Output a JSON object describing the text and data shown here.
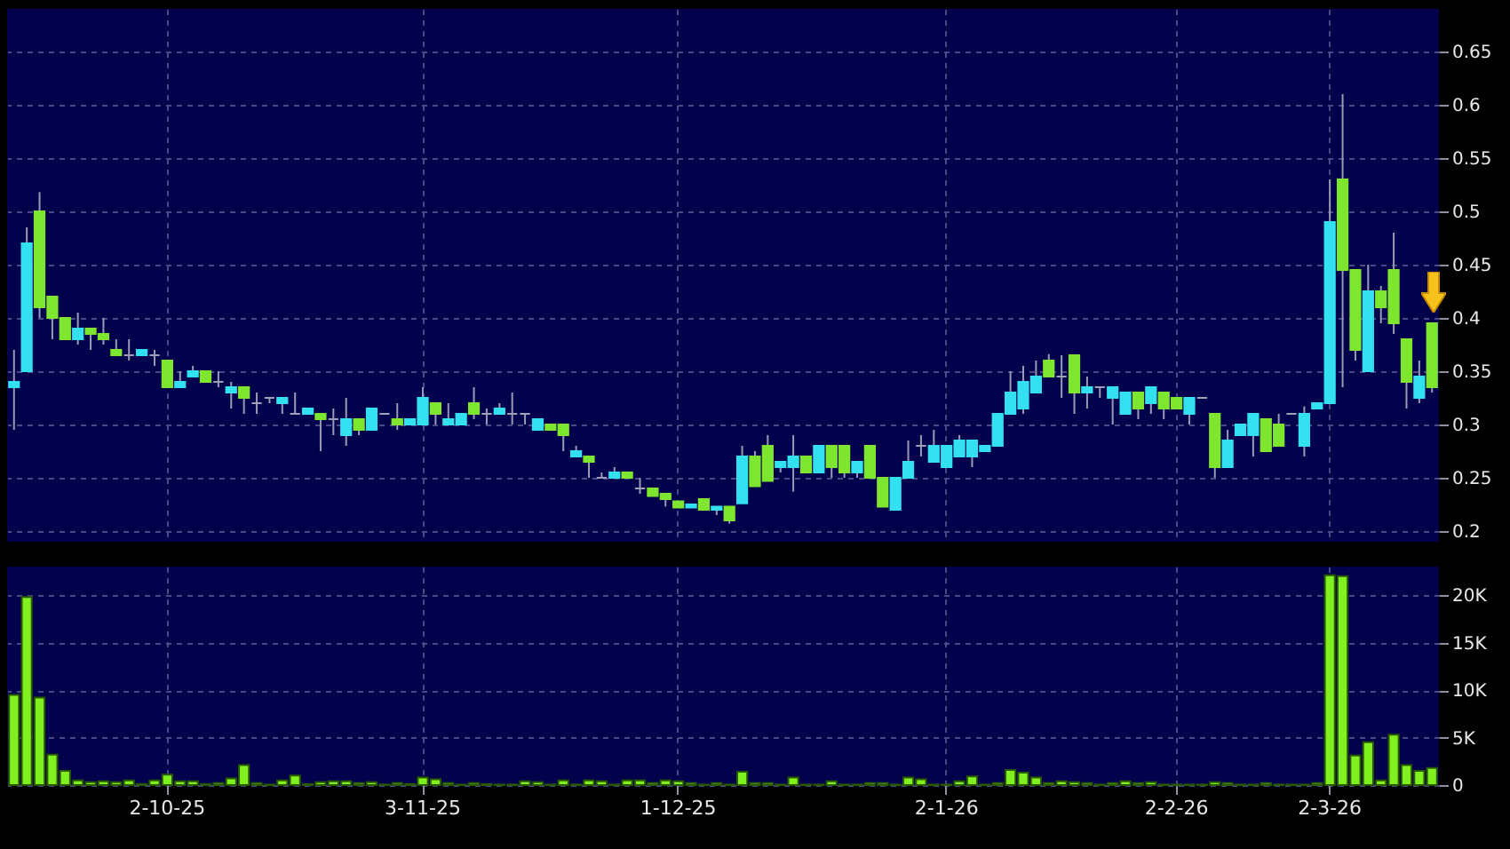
{
  "chart_data": [
    {
      "type": "candlestick",
      "tick_labels": "y",
      "grid": true,
      "ylim": [
        0.19,
        0.69
      ],
      "yticks": [
        0.2,
        0.25,
        0.3,
        0.35,
        0.4,
        0.45,
        0.5,
        0.55,
        0.6,
        0.65
      ],
      "ohlc": [
        [
          0.335,
          0.37,
          0.295,
          0.34
        ],
        [
          0.35,
          0.485,
          0.35,
          0.47
        ],
        [
          0.5,
          0.518,
          0.4,
          0.41
        ],
        [
          0.42,
          0.42,
          0.38,
          0.4
        ],
        [
          0.4,
          0.4,
          0.38,
          0.38
        ],
        [
          0.38,
          0.405,
          0.375,
          0.39
        ],
        [
          0.39,
          0.39,
          0.37,
          0.385
        ],
        [
          0.385,
          0.4,
          0.375,
          0.38
        ],
        [
          0.37,
          0.38,
          0.365,
          0.365
        ],
        [
          0.365,
          0.38,
          0.36,
          0.365
        ],
        [
          0.365,
          0.37,
          0.365,
          0.37
        ],
        [
          0.365,
          0.37,
          0.355,
          0.365
        ],
        [
          0.36,
          0.36,
          0.335,
          0.335
        ],
        [
          0.335,
          0.35,
          0.335,
          0.34
        ],
        [
          0.345,
          0.355,
          0.345,
          0.35
        ],
        [
          0.35,
          0.35,
          0.34,
          0.34
        ],
        [
          0.34,
          0.35,
          0.335,
          0.34
        ],
        [
          0.33,
          0.34,
          0.315,
          0.335
        ],
        [
          0.335,
          0.335,
          0.31,
          0.325
        ],
        [
          0.32,
          0.33,
          0.31,
          0.32
        ],
        [
          0.325,
          0.325,
          0.32,
          0.325
        ],
        [
          0.32,
          0.325,
          0.31,
          0.325
        ],
        [
          0.31,
          0.33,
          0.31,
          0.31
        ],
        [
          0.31,
          0.315,
          0.31,
          0.315
        ],
        [
          0.31,
          0.31,
          0.275,
          0.305
        ],
        [
          0.305,
          0.315,
          0.29,
          0.305
        ],
        [
          0.29,
          0.325,
          0.28,
          0.305
        ],
        [
          0.305,
          0.305,
          0.29,
          0.295
        ],
        [
          0.295,
          0.315,
          0.295,
          0.315
        ],
        [
          0.31,
          0.31,
          0.31,
          0.31
        ],
        [
          0.305,
          0.32,
          0.295,
          0.3
        ],
        [
          0.3,
          0.305,
          0.3,
          0.305
        ],
        [
          0.3,
          0.335,
          0.3,
          0.325
        ],
        [
          0.32,
          0.32,
          0.3,
          0.31
        ],
        [
          0.3,
          0.32,
          0.3,
          0.305
        ],
        [
          0.3,
          0.31,
          0.3,
          0.31
        ],
        [
          0.32,
          0.335,
          0.305,
          0.31
        ],
        [
          0.31,
          0.315,
          0.3,
          0.31
        ],
        [
          0.31,
          0.32,
          0.31,
          0.315
        ],
        [
          0.31,
          0.33,
          0.3,
          0.31
        ],
        [
          0.31,
          0.31,
          0.3,
          0.31
        ],
        [
          0.295,
          0.305,
          0.295,
          0.305
        ],
        [
          0.3,
          0.3,
          0.295,
          0.295
        ],
        [
          0.3,
          0.3,
          0.275,
          0.29
        ],
        [
          0.27,
          0.28,
          0.27,
          0.275
        ],
        [
          0.27,
          0.27,
          0.25,
          0.265
        ],
        [
          0.25,
          0.255,
          0.25,
          0.25
        ],
        [
          0.25,
          0.26,
          0.25,
          0.255
        ],
        [
          0.255,
          0.255,
          0.25,
          0.25
        ],
        [
          0.24,
          0.25,
          0.235,
          0.24
        ],
        [
          0.24,
          0.24,
          0.233,
          0.233
        ],
        [
          0.235,
          0.235,
          0.223,
          0.23
        ],
        [
          0.228,
          0.228,
          0.222,
          0.222
        ],
        [
          0.222,
          0.225,
          0.222,
          0.225
        ],
        [
          0.23,
          0.23,
          0.22,
          0.22
        ],
        [
          0.22,
          0.223,
          0.215,
          0.223
        ],
        [
          0.223,
          0.223,
          0.207,
          0.21
        ],
        [
          0.226,
          0.28,
          0.226,
          0.27
        ],
        [
          0.27,
          0.275,
          0.242,
          0.242
        ],
        [
          0.28,
          0.29,
          0.247,
          0.247
        ],
        [
          0.26,
          0.265,
          0.255,
          0.265
        ],
        [
          0.26,
          0.29,
          0.237,
          0.27
        ],
        [
          0.27,
          0.27,
          0.255,
          0.255
        ],
        [
          0.255,
          0.28,
          0.255,
          0.28
        ],
        [
          0.28,
          0.28,
          0.25,
          0.26
        ],
        [
          0.28,
          0.28,
          0.25,
          0.255
        ],
        [
          0.255,
          0.265,
          0.25,
          0.265
        ],
        [
          0.28,
          0.28,
          0.25,
          0.25
        ],
        [
          0.25,
          0.25,
          0.223,
          0.223
        ],
        [
          0.22,
          0.25,
          0.22,
          0.25
        ],
        [
          0.25,
          0.285,
          0.25,
          0.265
        ],
        [
          0.28,
          0.29,
          0.27,
          0.28
        ],
        [
          0.265,
          0.295,
          0.265,
          0.28
        ],
        [
          0.26,
          0.28,
          0.26,
          0.28
        ],
        [
          0.27,
          0.29,
          0.27,
          0.285
        ],
        [
          0.27,
          0.285,
          0.26,
          0.285
        ],
        [
          0.275,
          0.28,
          0.275,
          0.28
        ],
        [
          0.28,
          0.31,
          0.28,
          0.31
        ],
        [
          0.31,
          0.35,
          0.31,
          0.33
        ],
        [
          0.315,
          0.355,
          0.31,
          0.34
        ],
        [
          0.33,
          0.36,
          0.33,
          0.345
        ],
        [
          0.36,
          0.366,
          0.345,
          0.345
        ],
        [
          0.345,
          0.365,
          0.325,
          0.345
        ],
        [
          0.365,
          0.365,
          0.31,
          0.33
        ],
        [
          0.33,
          0.345,
          0.315,
          0.335
        ],
        [
          0.335,
          0.335,
          0.325,
          0.335
        ],
        [
          0.325,
          0.335,
          0.3,
          0.335
        ],
        [
          0.31,
          0.33,
          0.31,
          0.33
        ],
        [
          0.33,
          0.33,
          0.305,
          0.315
        ],
        [
          0.32,
          0.335,
          0.31,
          0.335
        ],
        [
          0.33,
          0.33,
          0.305,
          0.315
        ],
        [
          0.325,
          0.325,
          0.315,
          0.315
        ],
        [
          0.31,
          0.325,
          0.3,
          0.325
        ],
        [
          0.325,
          0.325,
          0.325,
          0.325
        ],
        [
          0.31,
          0.31,
          0.25,
          0.26
        ],
        [
          0.26,
          0.295,
          0.26,
          0.285
        ],
        [
          0.29,
          0.3,
          0.29,
          0.3
        ],
        [
          0.29,
          0.31,
          0.27,
          0.31
        ],
        [
          0.305,
          0.305,
          0.275,
          0.275
        ],
        [
          0.3,
          0.31,
          0.28,
          0.28
        ],
        [
          0.31,
          0.31,
          0.31,
          0.31
        ],
        [
          0.28,
          0.317,
          0.27,
          0.31
        ],
        [
          0.315,
          0.32,
          0.315,
          0.32
        ],
        [
          0.32,
          0.53,
          0.32,
          0.49
        ],
        [
          0.53,
          0.61,
          0.335,
          0.445
        ],
        [
          0.445,
          0.445,
          0.36,
          0.37
        ],
        [
          0.35,
          0.45,
          0.35,
          0.425
        ],
        [
          0.425,
          0.43,
          0.395,
          0.41
        ],
        [
          0.445,
          0.48,
          0.385,
          0.395
        ],
        [
          0.38,
          0.38,
          0.315,
          0.34
        ],
        [
          0.325,
          0.36,
          0.32,
          0.345
        ],
        [
          0.395,
          0.395,
          0.33,
          0.335
        ]
      ],
      "colors": [
        "#33e0f0",
        "#33e0f0",
        "#7ee62e",
        "#7ee62e",
        "#7ee62e",
        "#33e0f0",
        "#7ee62e",
        "#7ee62e",
        "#7ee62e",
        "#a0a0b8",
        "#33e0f0",
        "#a0a0b8",
        "#7ee62e",
        "#33e0f0",
        "#33e0f0",
        "#7ee62e",
        "#a0a0b8",
        "#33e0f0",
        "#7ee62e",
        "#a0a0b8",
        "#a0a0b8",
        "#33e0f0",
        "#a0a0b8",
        "#33e0f0",
        "#7ee62e",
        "#a0a0b8",
        "#33e0f0",
        "#7ee62e",
        "#33e0f0",
        "#a0a0b8",
        "#7ee62e",
        "#33e0f0",
        "#33e0f0",
        "#7ee62e",
        "#33e0f0",
        "#33e0f0",
        "#7ee62e",
        "#a0a0b8",
        "#33e0f0",
        "#a0a0b8",
        "#a0a0b8",
        "#33e0f0",
        "#7ee62e",
        "#7ee62e",
        "#33e0f0",
        "#7ee62e",
        "#a0a0b8",
        "#33e0f0",
        "#7ee62e",
        "#a0a0b8",
        "#7ee62e",
        "#7ee62e",
        "#7ee62e",
        "#33e0f0",
        "#7ee62e",
        "#33e0f0",
        "#7ee62e",
        "#33e0f0",
        "#7ee62e",
        "#7ee62e",
        "#33e0f0",
        "#33e0f0",
        "#7ee62e",
        "#33e0f0",
        "#7ee62e",
        "#7ee62e",
        "#33e0f0",
        "#7ee62e",
        "#7ee62e",
        "#33e0f0",
        "#33e0f0",
        "#a0a0b8",
        "#33e0f0",
        "#33e0f0",
        "#33e0f0",
        "#33e0f0",
        "#33e0f0",
        "#33e0f0",
        "#33e0f0",
        "#33e0f0",
        "#33e0f0",
        "#7ee62e",
        "#a0a0b8",
        "#7ee62e",
        "#33e0f0",
        "#a0a0b8",
        "#33e0f0",
        "#33e0f0",
        "#7ee62e",
        "#33e0f0",
        "#7ee62e",
        "#7ee62e",
        "#33e0f0",
        "#a0a0b8",
        "#7ee62e",
        "#33e0f0",
        "#33e0f0",
        "#33e0f0",
        "#7ee62e",
        "#7ee62e",
        "#a0a0b8",
        "#33e0f0",
        "#33e0f0",
        "#33e0f0",
        "#7ee62e",
        "#7ee62e",
        "#33e0f0",
        "#7ee62e",
        "#7ee62e",
        "#7ee62e",
        "#33e0f0",
        "#7ee62e"
      ]
    },
    {
      "type": "bar",
      "grid": true,
      "color": "#80f020",
      "ylim": [
        0,
        23000
      ],
      "yticks": [
        0,
        {
          "value": 5000,
          "label": "5K"
        },
        {
          "value": 10000,
          "label": "10K"
        },
        {
          "value": 15000,
          "label": "15K"
        },
        {
          "value": 20000,
          "label": "20K"
        }
      ],
      "categories": [
        null,
        null,
        null,
        null,
        null,
        null,
        null,
        null,
        null,
        null,
        null,
        null,
        "2-10-25",
        null,
        null,
        null,
        null,
        null,
        null,
        null,
        null,
        null,
        null,
        null,
        null,
        null,
        null,
        null,
        null,
        null,
        null,
        null,
        "3-11-25",
        null,
        null,
        null,
        null,
        null,
        null,
        null,
        null,
        null,
        null,
        null,
        null,
        null,
        null,
        null,
        null,
        null,
        null,
        null,
        "1-12-25",
        null,
        null,
        null,
        null,
        null,
        null,
        null,
        null,
        null,
        null,
        null,
        null,
        null,
        null,
        null,
        null,
        null,
        null,
        null,
        null,
        "2-1-26",
        null,
        null,
        null,
        null,
        null,
        null,
        null,
        null,
        null,
        null,
        null,
        null,
        null,
        null,
        null,
        null,
        null,
        "2-2-26",
        null,
        null,
        null,
        null,
        null,
        null,
        null,
        null,
        null,
        null,
        null,
        "2-3-26",
        null,
        null,
        null,
        null,
        null,
        null,
        null,
        null
      ],
      "values": [
        9500,
        19800,
        9200,
        3200,
        1500,
        500,
        300,
        400,
        300,
        500,
        100,
        500,
        1100,
        400,
        400,
        100,
        200,
        700,
        2100,
        200,
        50,
        500,
        1000,
        100,
        300,
        400,
        400,
        200,
        300,
        50,
        200,
        100,
        800,
        600,
        200,
        50,
        200,
        100,
        50,
        50,
        400,
        300,
        50,
        500,
        50,
        500,
        400,
        50,
        500,
        500,
        200,
        500,
        400,
        200,
        50,
        200,
        50,
        1400,
        200,
        200,
        50,
        800,
        50,
        50,
        400,
        50,
        50,
        200,
        200,
        50,
        800,
        600,
        50,
        50,
        400,
        900,
        50,
        200,
        1600,
        1300,
        800,
        200,
        400,
        300,
        200,
        50,
        200,
        400,
        200,
        300,
        50,
        50,
        50,
        50,
        300,
        200,
        50,
        50,
        200,
        50,
        50,
        50,
        200,
        22100,
        22000,
        3100,
        4500,
        500,
        5300,
        2100,
        1500,
        1800
      ]
    }
  ]
}
